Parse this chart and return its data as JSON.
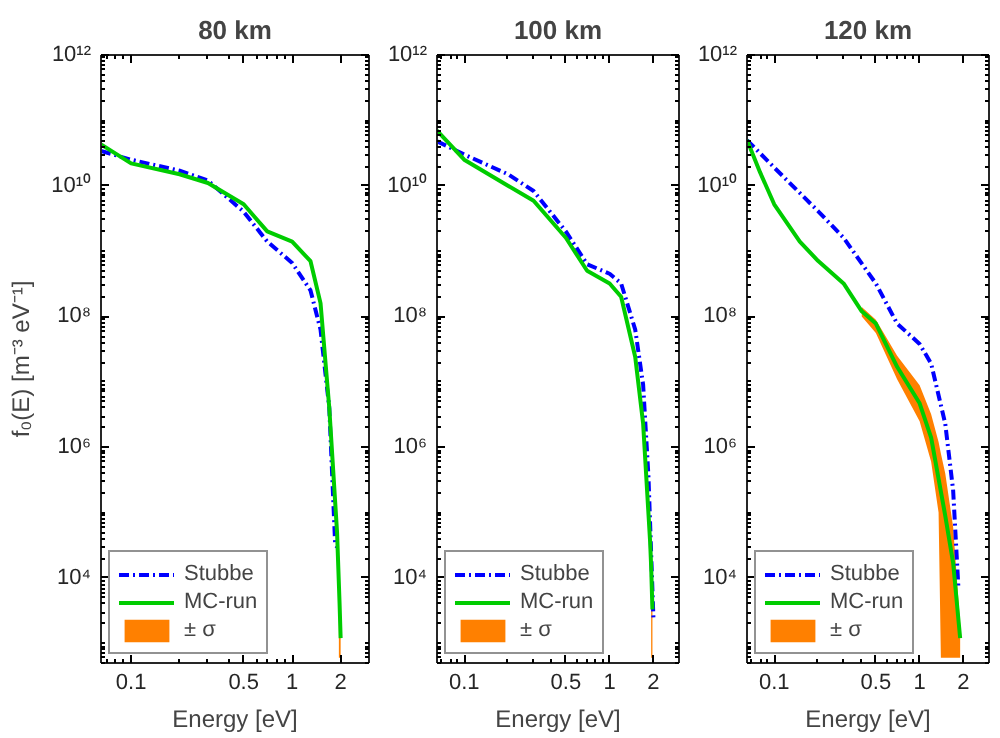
{
  "chart_data": [
    {
      "type": "line",
      "title": "80 km",
      "xlabel": "Energy [eV]",
      "ylabel": "f₀(E) [m⁻³ eV⁻¹]",
      "log": "xy",
      "grid": false,
      "legend": "bottom left",
      "xlim": [
        0.065,
        3
      ],
      "ylim": [
        500,
        1000000000000.0
      ],
      "xticks": [
        0.1,
        0.5,
        1,
        2
      ],
      "yticks": [
        {
          "value": 10000.0,
          "label": "10⁴"
        },
        {
          "value": 1000000.0,
          "label": "10⁶"
        },
        {
          "value": 100000000.0,
          "label": "10⁸"
        },
        {
          "value": 10000000000.0,
          "label": "10¹⁰"
        },
        {
          "value": 1000000000000.0,
          "label": "10¹²"
        }
      ],
      "series": [
        {
          "name": "Stubbe",
          "color": "#0000ff",
          "line_style": "dashdot",
          "x": [
            0.065,
            0.1,
            0.2,
            0.3,
            0.5,
            0.7,
            1.0,
            1.3,
            1.5,
            1.7,
            1.85,
            1.9
          ],
          "values": [
            34000000000.0,
            25000000000.0,
            17000000000.0,
            12000000000.0,
            4000000000.0,
            1400000000.0,
            660000000.0,
            250000000.0,
            63000000.0,
            4000000.0,
            32000.0,
            30000.0
          ]
        },
        {
          "name": "MC-run",
          "color": "#00cc00",
          "line_style": "solid",
          "x": [
            0.065,
            0.1,
            0.2,
            0.3,
            0.5,
            0.7,
            1.0,
            1.3,
            1.5,
            1.7,
            1.9,
            1.97,
            2.0
          ],
          "values": [
            43000000000.0,
            22000000000.0,
            15000000000.0,
            11000000000.0,
            5200000000.0,
            2000000000.0,
            1400000000.0,
            700000000.0,
            160000000.0,
            4000000.0,
            50000.0,
            4000,
            1200
          ]
        },
        {
          "name": "± σ",
          "color": "#ff8000",
          "x": [
            1.95,
            2.0
          ],
          "values": [
            null,
            null
          ],
          "lower": [
            600,
            600
          ],
          "upper": [
            3000,
            1200
          ]
        }
      ]
    },
    {
      "type": "line",
      "title": "100 km",
      "xlabel": "Energy [eV]",
      "log": "xy",
      "grid": false,
      "legend": "bottom left",
      "xlim": [
        0.065,
        3
      ],
      "ylim": [
        500,
        1000000000000.0
      ],
      "xticks": [
        0.1,
        0.5,
        1,
        2
      ],
      "yticks": [
        {
          "value": 10000.0,
          "label": "10⁴"
        },
        {
          "value": 1000000.0,
          "label": "10⁶"
        },
        {
          "value": 100000000.0,
          "label": "10⁸"
        },
        {
          "value": 10000000000.0,
          "label": "10¹⁰"
        },
        {
          "value": 1000000000000.0,
          "label": "10¹²"
        }
      ],
      "series": [
        {
          "name": "Stubbe",
          "color": "#0000ff",
          "line_style": "dashdot",
          "x": [
            0.065,
            0.1,
            0.2,
            0.3,
            0.5,
            0.7,
            1.0,
            1.2,
            1.5,
            1.7,
            1.85,
            2.0
          ],
          "values": [
            48000000000.0,
            30000000000.0,
            15000000000.0,
            8300000000.0,
            2000000000.0,
            630000000.0,
            450000000.0,
            320000000.0,
            63000000.0,
            9000000.0,
            350000.0,
            2500
          ]
        },
        {
          "name": "MC-run",
          "color": "#00cc00",
          "line_style": "solid",
          "x": [
            0.065,
            0.1,
            0.2,
            0.3,
            0.5,
            0.7,
            1.0,
            1.2,
            1.5,
            1.7,
            1.9,
            1.93,
            1.97
          ],
          "values": [
            70000000000.0,
            25000000000.0,
            10000000000.0,
            5900000000.0,
            1600000000.0,
            500000000.0,
            320000000.0,
            200000000.0,
            24000000.0,
            2300000.0,
            35000.0,
            15000.0,
            3300
          ]
        },
        {
          "name": "± σ",
          "color": "#ff8000",
          "x": [
            1.93,
            1.97
          ],
          "values": [
            null,
            null
          ],
          "lower": [
            600,
            600
          ],
          "upper": [
            30000.0,
            5000
          ]
        }
      ]
    },
    {
      "type": "line",
      "title": "120 km",
      "xlabel": "Energy [eV]",
      "log": "xy",
      "grid": false,
      "legend": "bottom left",
      "xlim": [
        0.065,
        3
      ],
      "ylim": [
        500,
        1000000000000.0
      ],
      "xticks": [
        0.1,
        0.5,
        1,
        2
      ],
      "yticks": [
        {
          "value": 10000.0,
          "label": "10⁴"
        },
        {
          "value": 1000000.0,
          "label": "10⁶"
        },
        {
          "value": 100000000.0,
          "label": "10⁸"
        },
        {
          "value": 10000000000.0,
          "label": "10¹⁰"
        },
        {
          "value": 1000000000000.0,
          "label": "10¹²"
        }
      ],
      "series": [
        {
          "name": "Stubbe",
          "color": "#0000ff",
          "line_style": "dashdot",
          "x": [
            0.065,
            0.1,
            0.2,
            0.3,
            0.5,
            0.7,
            1.0,
            1.2,
            1.5,
            1.7,
            1.85
          ],
          "values": [
            50000000000.0,
            19000000000.0,
            4100000000.0,
            1600000000.0,
            320000000.0,
            78000000.0,
            38000000.0,
            19000000.0,
            2300000.0,
            220000.0,
            6800
          ]
        },
        {
          "name": "MC-run",
          "color": "#00cc00",
          "line_style": "solid",
          "x": [
            0.065,
            0.08,
            0.1,
            0.15,
            0.2,
            0.3,
            0.4,
            0.5,
            0.7,
            1.0,
            1.2,
            1.5,
            1.7,
            1.9
          ],
          "values": [
            50000000000.0,
            16000000000.0,
            5200000000.0,
            1400000000.0,
            710000000.0,
            320000000.0,
            120000000.0,
            78000000.0,
            17000000.0,
            4700000.0,
            1400000.0,
            90000.0,
            17000.0,
            1200
          ]
        },
        {
          "name": "± σ",
          "color": "#ff8000",
          "x": [
            0.4,
            0.5,
            0.7,
            1.0,
            1.2,
            1.35,
            1.4,
            1.5,
            1.7,
            1.9
          ],
          "values": [
            null,
            null,
            null,
            null,
            null,
            null,
            null,
            null,
            null,
            null
          ],
          "lower": [
            100000000.0,
            56000000.0,
            11000000.0,
            2500000.0,
            600000.0,
            100000.0,
            600,
            600,
            600,
            600
          ],
          "upper": [
            140000000.0,
            89000000.0,
            25000000.0,
            8900000.0,
            3200000.0,
            1200000.0,
            800000.0,
            400000.0,
            60000.0,
            2000
          ]
        }
      ]
    }
  ]
}
